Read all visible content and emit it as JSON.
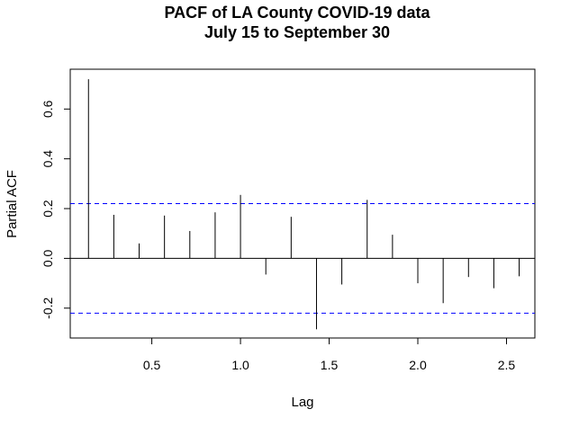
{
  "chart_data": {
    "type": "bar",
    "title": [
      "PACF of LA County COVID-19 data",
      "July 15 to September 30"
    ],
    "xlabel": "Lag",
    "ylabel": "Partial ACF",
    "xlim": [
      0.04,
      2.66
    ],
    "ylim": [
      -0.32,
      0.76
    ],
    "x_ticks": [
      0.5,
      1.0,
      1.5,
      2.0,
      2.5
    ],
    "x_tick_labels": [
      "0.5",
      "1.0",
      "1.5",
      "2.0",
      "2.5"
    ],
    "y_ticks": [
      -0.2,
      0.0,
      0.2,
      0.4,
      0.6
    ],
    "y_tick_labels": [
      "-0.2",
      "0.0",
      "0.2",
      "0.4",
      "0.6"
    ],
    "confidence_bound": 0.22,
    "confidence_color": "#0000ff",
    "zero_line": true,
    "grid": false,
    "x": [
      0.1429,
      0.2857,
      0.4286,
      0.5714,
      0.7143,
      0.8571,
      1.0,
      1.1429,
      1.2857,
      1.4286,
      1.5714,
      1.7143,
      1.8571,
      2.0,
      2.1429,
      2.2857,
      2.4286,
      2.5714
    ],
    "values": [
      0.72,
      0.175,
      0.06,
      0.172,
      0.11,
      0.185,
      0.255,
      -0.065,
      0.167,
      -0.285,
      -0.105,
      0.235,
      0.095,
      -0.1,
      -0.18,
      -0.075,
      -0.12,
      -0.072
    ]
  }
}
